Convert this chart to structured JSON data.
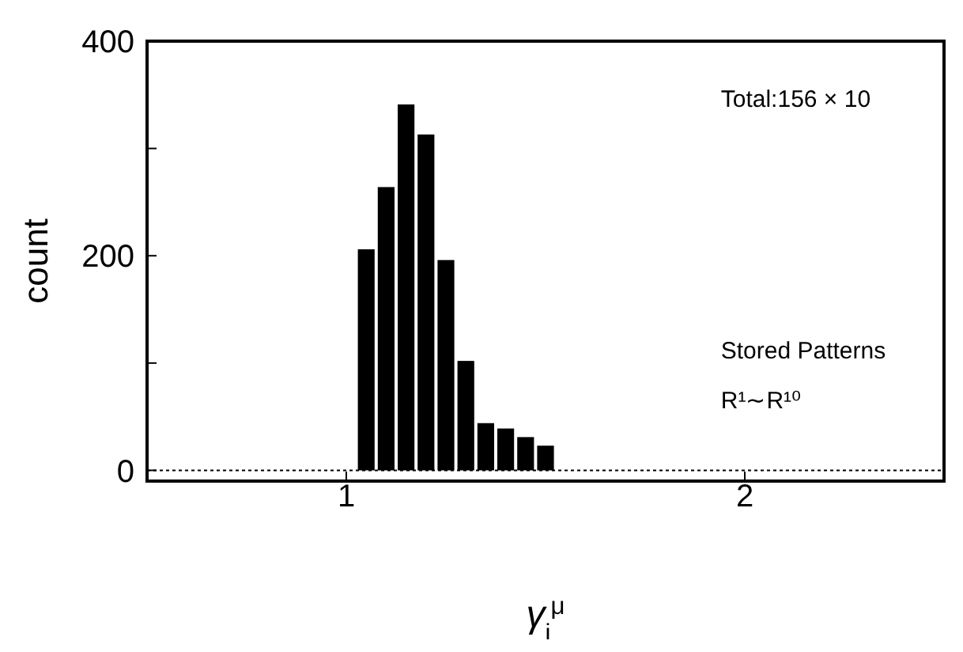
{
  "chart_data": {
    "type": "histogram",
    "xlabel": "γ$_{i}$$^{μ}$",
    "ylabel": "count",
    "bins": [
      1.025,
      1.075,
      1.125,
      1.175,
      1.225,
      1.275,
      1.325,
      1.375,
      1.425,
      1.475,
      1.525
    ],
    "values": [
      206,
      264,
      341,
      313,
      196,
      102,
      44,
      39,
      31,
      23
    ],
    "color": "#000000",
    "xlim": [
      0.5,
      2.5
    ],
    "xticks": [
      1,
      2
    ],
    "ylim": [
      -10,
      400
    ],
    "yticks": [
      0,
      {
        "value": 100,
        "label": null
      },
      200,
      {
        "value": 300,
        "label": null
      },
      400
    ],
    "ref_lines": [
      {
        "axis": "y",
        "value": 0,
        "line_style": "dotted",
        "color": "#000000"
      }
    ],
    "annotations": [
      "Total:156 × 10",
      "Stored Patterns",
      "R¹∼R¹⁰"
    ]
  }
}
